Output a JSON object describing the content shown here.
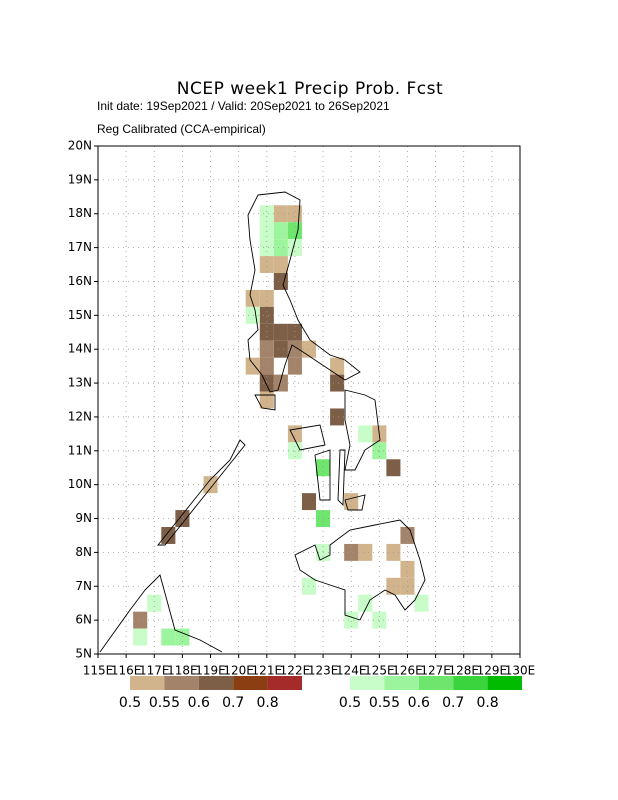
{
  "title": "NCEP week1 Precip Prob. Fcst",
  "subtitle": [
    "Init date: 19Sep2021 / Valid: 20Sep2021 to 26Sep2021",
    "Reg Calibrated (CCA-empirical)"
  ],
  "map": {
    "xlim": [
      115,
      130
    ],
    "ylim": [
      5,
      20
    ],
    "cell_size": 0.5,
    "xticks": [
      {
        "value": 115,
        "label": "115E"
      },
      {
        "value": 116,
        "label": "116E"
      },
      {
        "value": 117,
        "label": "117E"
      },
      {
        "value": 118,
        "label": "118E"
      },
      {
        "value": 119,
        "label": "119E"
      },
      {
        "value": 120,
        "label": "120E"
      },
      {
        "value": 121,
        "label": "121E"
      },
      {
        "value": 122,
        "label": "122E"
      },
      {
        "value": 123,
        "label": "123E"
      },
      {
        "value": 124,
        "label": "124E"
      },
      {
        "value": 125,
        "label": "125E"
      },
      {
        "value": 126,
        "label": "126E"
      },
      {
        "value": 127,
        "label": "127E"
      },
      {
        "value": 128,
        "label": "128E"
      },
      {
        "value": 129,
        "label": "129E"
      },
      {
        "value": 130,
        "label": "130E"
      }
    ],
    "yticks": [
      {
        "value": 5,
        "label": "5N"
      },
      {
        "value": 6,
        "label": "6N"
      },
      {
        "value": 7,
        "label": "7N"
      },
      {
        "value": 8,
        "label": "8N"
      },
      {
        "value": 9,
        "label": "9N"
      },
      {
        "value": 10,
        "label": "10N"
      },
      {
        "value": 11,
        "label": "11N"
      },
      {
        "value": 12,
        "label": "12N"
      },
      {
        "value": 13,
        "label": "13N"
      },
      {
        "value": 14,
        "label": "14N"
      },
      {
        "value": 15,
        "label": "15N"
      },
      {
        "value": 16,
        "label": "16N"
      },
      {
        "value": 17,
        "label": "17N"
      },
      {
        "value": 18,
        "label": "18N"
      },
      {
        "value": 19,
        "label": "19N"
      },
      {
        "value": 20,
        "label": "20N"
      }
    ],
    "grid": true
  },
  "legends": [
    {
      "levels": [
        0.5,
        0.55,
        0.6,
        0.7,
        0.8
      ],
      "colors": [
        "#d2b48c",
        "#a3846a",
        "#7d5e47",
        "#8b3e12",
        "#a52a2a"
      ],
      "cells": [
        [
          121.5,
          18.0,
          0.5
        ],
        [
          122.0,
          18.0,
          0.5
        ],
        [
          121.0,
          16.5,
          0.5
        ],
        [
          121.5,
          16.5,
          0.5
        ],
        [
          121.5,
          16.0,
          0.6
        ],
        [
          120.5,
          15.5,
          0.5
        ],
        [
          121.0,
          15.5,
          0.5
        ],
        [
          121.0,
          15.0,
          0.6
        ],
        [
          121.0,
          14.5,
          0.6
        ],
        [
          121.5,
          14.5,
          0.6
        ],
        [
          121.5,
          14.0,
          0.6
        ],
        [
          121.0,
          14.0,
          0.55
        ],
        [
          122.0,
          14.5,
          0.6
        ],
        [
          122.0,
          14.0,
          0.55
        ],
        [
          122.5,
          14.0,
          0.5
        ],
        [
          120.5,
          13.5,
          0.5
        ],
        [
          121.0,
          13.0,
          0.6
        ],
        [
          121.0,
          13.5,
          0.55
        ],
        [
          121.5,
          13.0,
          0.55
        ],
        [
          122.0,
          13.5,
          0.55
        ],
        [
          123.5,
          13.0,
          0.6
        ],
        [
          123.5,
          13.5,
          0.5
        ],
        [
          123.5,
          12.0,
          0.6
        ],
        [
          121.0,
          12.5,
          0.5
        ],
        [
          122.0,
          11.5,
          0.5
        ],
        [
          125.0,
          11.5,
          0.5
        ],
        [
          125.5,
          10.5,
          0.6
        ],
        [
          122.5,
          9.5,
          0.6
        ],
        [
          124.0,
          9.5,
          0.5
        ],
        [
          118.0,
          9.0,
          0.6
        ],
        [
          117.5,
          8.5,
          0.6
        ],
        [
          119.0,
          10.0,
          0.5
        ],
        [
          124.5,
          8.0,
          0.5
        ],
        [
          124.0,
          8.0,
          0.55
        ],
        [
          125.5,
          8.0,
          0.5
        ],
        [
          126.0,
          8.5,
          0.55
        ],
        [
          126.0,
          7.5,
          0.5
        ],
        [
          125.5,
          7.0,
          0.5
        ],
        [
          126.0,
          7.0,
          0.5
        ],
        [
          116.5,
          6.0,
          0.55
        ]
      ]
    },
    {
      "levels": [
        0.5,
        0.55,
        0.6,
        0.7,
        0.8
      ],
      "colors": [
        "#c8fcc8",
        "#9cf59c",
        "#6ee66e",
        "#3cd43c",
        "#00bb00"
      ],
      "cells": [
        [
          121.0,
          18.0,
          0.5
        ],
        [
          121.0,
          17.5,
          0.5
        ],
        [
          121.5,
          17.5,
          0.55
        ],
        [
          122.0,
          17.5,
          0.6
        ],
        [
          121.0,
          17.0,
          0.5
        ],
        [
          121.5,
          17.0,
          0.55
        ],
        [
          122.0,
          17.0,
          0.5
        ],
        [
          120.5,
          15.0,
          0.5
        ],
        [
          122.0,
          11.0,
          0.5
        ],
        [
          123.0,
          10.5,
          0.6
        ],
        [
          123.0,
          9.0,
          0.6
        ],
        [
          124.5,
          11.5,
          0.5
        ],
        [
          125.0,
          11.0,
          0.55
        ],
        [
          123.0,
          8.0,
          0.5
        ],
        [
          122.5,
          7.0,
          0.5
        ],
        [
          124.5,
          6.5,
          0.5
        ],
        [
          125.0,
          6.0,
          0.5
        ],
        [
          117.0,
          6.5,
          0.5
        ],
        [
          117.5,
          5.5,
          0.55
        ],
        [
          118.0,
          5.5,
          0.55
        ],
        [
          116.5,
          5.5,
          0.5
        ],
        [
          124.0,
          6.0,
          0.5
        ],
        [
          126.5,
          6.5,
          0.5
        ]
      ]
    }
  ]
}
